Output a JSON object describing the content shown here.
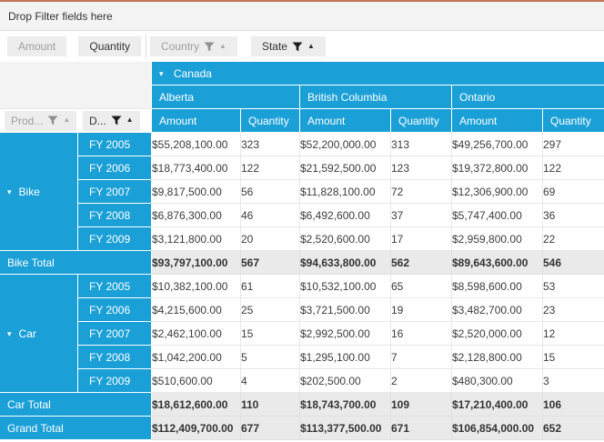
{
  "filter_area": {
    "placeholder": "Drop Filter fields here"
  },
  "icons": {
    "collapse": "▾",
    "sort_ascending": "▲",
    "filter": "funnel"
  },
  "colors": {
    "header_blue": "#1aa0d7",
    "top_border_copper": "#bd7453",
    "filter_bar_bg": "#f3f3f3",
    "button_bg": "#ededed",
    "muted_text": "#9e9e9e",
    "text": "#333333",
    "grid_line": "#e8e8e8",
    "total_bg": "#eaeaea"
  },
  "fields": {
    "values": [
      {
        "label": "Amount",
        "muted": true
      },
      {
        "label": "Quantity",
        "muted": false
      }
    ],
    "columns": [
      {
        "label": "Country",
        "muted": true,
        "filtered": true,
        "sorted": "ascending"
      },
      {
        "label": "State",
        "muted": false,
        "filtered": true,
        "sorted": "ascending"
      }
    ],
    "rows": [
      {
        "label": "Prod...",
        "muted": true,
        "filtered": true,
        "sorted": "ascending"
      },
      {
        "label": "D...",
        "muted": false,
        "filtered": true,
        "sorted": "ascending"
      }
    ]
  },
  "column_headers": {
    "country": "Canada",
    "country_expanded": true,
    "states": [
      "Alberta",
      "British Columbia",
      "Ontario"
    ],
    "measures": [
      "Amount",
      "Quantity"
    ]
  },
  "body_rows": [
    {
      "kind": "detail",
      "group": {
        "label": "Bike",
        "span": 5,
        "expanded": true
      },
      "period": "FY 2005",
      "values": [
        "$55,208,100.00",
        "323",
        "$52,200,000.00",
        "313",
        "$49,256,700.00",
        "297"
      ]
    },
    {
      "kind": "detail",
      "period": "FY 2006",
      "values": [
        "$18,773,400.00",
        "122",
        "$21,592,500.00",
        "123",
        "$19,372,800.00",
        "122"
      ]
    },
    {
      "kind": "detail",
      "period": "FY 2007",
      "values": [
        "$9,817,500.00",
        "56",
        "$11,828,100.00",
        "72",
        "$12,306,900.00",
        "69"
      ]
    },
    {
      "kind": "detail",
      "period": "FY 2008",
      "values": [
        "$6,876,300.00",
        "46",
        "$6,492,600.00",
        "37",
        "$5,747,400.00",
        "36"
      ]
    },
    {
      "kind": "detail",
      "period": "FY 2009",
      "values": [
        "$3,121,800.00",
        "20",
        "$2,520,600.00",
        "17",
        "$2,959,800.00",
        "22"
      ]
    },
    {
      "kind": "total",
      "label": "Bike Total",
      "values": [
        "$93,797,100.00",
        "567",
        "$94,633,800.00",
        "562",
        "$89,643,600.00",
        "546"
      ]
    },
    {
      "kind": "detail",
      "group": {
        "label": "Car",
        "span": 5,
        "expanded": true
      },
      "period": "FY 2005",
      "values": [
        "$10,382,100.00",
        "61",
        "$10,532,100.00",
        "65",
        "$8,598,600.00",
        "53"
      ]
    },
    {
      "kind": "detail",
      "period": "FY 2006",
      "values": [
        "$4,215,600.00",
        "25",
        "$3,721,500.00",
        "19",
        "$3,482,700.00",
        "23"
      ]
    },
    {
      "kind": "detail",
      "period": "FY 2007",
      "values": [
        "$2,462,100.00",
        "15",
        "$2,992,500.00",
        "16",
        "$2,520,000.00",
        "12"
      ]
    },
    {
      "kind": "detail",
      "period": "FY 2008",
      "values": [
        "$1,042,200.00",
        "5",
        "$1,295,100.00",
        "7",
        "$2,128,800.00",
        "15"
      ]
    },
    {
      "kind": "detail",
      "period": "FY 2009",
      "values": [
        "$510,600.00",
        "4",
        "$202,500.00",
        "2",
        "$480,300.00",
        "3"
      ]
    },
    {
      "kind": "total",
      "label": "Car Total",
      "values": [
        "$18,612,600.00",
        "110",
        "$18,743,700.00",
        "109",
        "$17,210,400.00",
        "106"
      ]
    },
    {
      "kind": "grand_total",
      "label": "Grand Total",
      "values": [
        "$112,409,700.00",
        "677",
        "$113,377,500.00",
        "671",
        "$106,854,000.00",
        "652"
      ]
    }
  ]
}
